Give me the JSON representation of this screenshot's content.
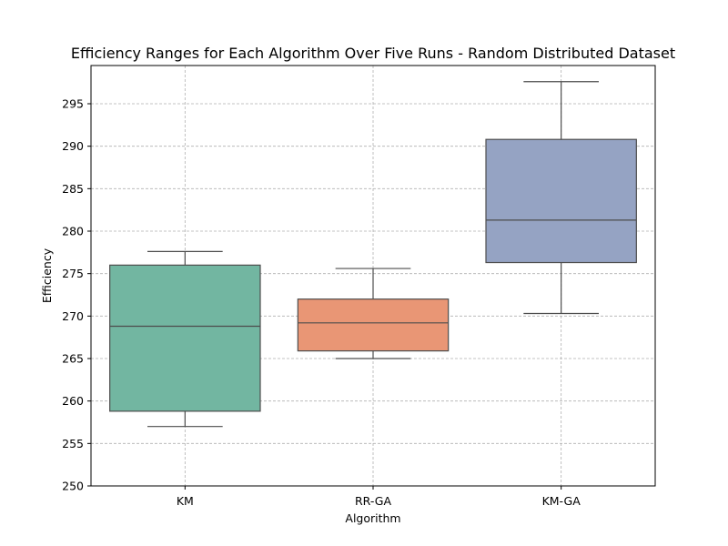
{
  "chart_data": {
    "type": "box",
    "title": "Efficiency Ranges for Each Algorithm Over Five Runs - Random Distributed Dataset",
    "xlabel": "Algorithm",
    "ylabel": "Efficiency",
    "ylim": [
      250,
      299.5
    ],
    "yticks": [
      250,
      255,
      260,
      265,
      270,
      275,
      280,
      285,
      290,
      295
    ],
    "grid": true,
    "categories": [
      "KM",
      "RR-GA",
      "KM-GA"
    ],
    "boxes": [
      {
        "label": "KM",
        "whisker_low": 257.0,
        "q1": 258.8,
        "median": 268.8,
        "q3": 276.0,
        "whisker_high": 277.6,
        "color": "#72b6a1"
      },
      {
        "label": "RR-GA",
        "whisker_low": 265.0,
        "q1": 265.9,
        "median": 269.2,
        "q3": 272.0,
        "whisker_high": 275.6,
        "color": "#e99675"
      },
      {
        "label": "KM-GA",
        "whisker_low": 270.3,
        "q1": 276.3,
        "median": 281.3,
        "q3": 290.8,
        "whisker_high": 297.6,
        "color": "#95a3c3"
      }
    ]
  }
}
